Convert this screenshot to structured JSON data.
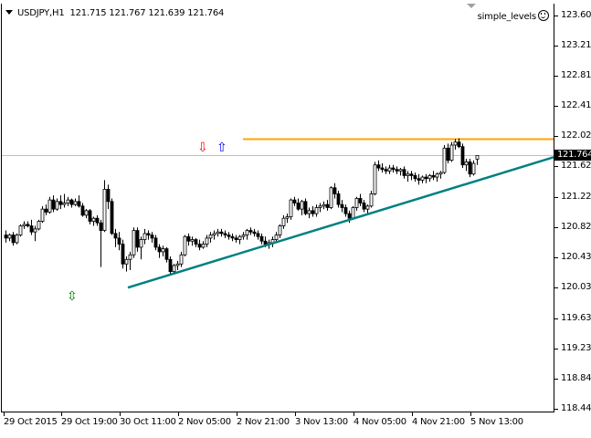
{
  "header": {
    "symbol_timeframe": "USDJPY,H1",
    "ohlc": "121.715 121.767 121.639 121.764"
  },
  "indicator": {
    "name": "simple_levels",
    "icon": "smiley-icon"
  },
  "price_axis": {
    "current_price": "121.764",
    "ticks": [
      "123.600",
      "123.210",
      "122.810",
      "122.410",
      "122.020",
      "121.620",
      "121.220",
      "120.820",
      "120.430",
      "120.030",
      "119.630",
      "119.230",
      "118.840",
      "118.440"
    ]
  },
  "time_axis": {
    "ticks": [
      "29 Oct 2015",
      "29 Oct 19:00",
      "30 Oct 11:00",
      "2 Nov 05:00",
      "2 Nov 21:00",
      "3 Nov 13:00",
      "4 Nov 05:00",
      "4 Nov 21:00",
      "5 Nov 13:00"
    ]
  },
  "colors": {
    "background": "#ffffff",
    "candle": "#000000",
    "resistance_line": "#ffa500",
    "trend_line": "#008080",
    "bid_line": "#c0c0c0",
    "sell_arrow": "#ff0000",
    "buy_arrow": "#0000ff",
    "updown_arrow": "#008000"
  },
  "markers": {
    "sell_arrow": "⇩",
    "buy_arrow": "⇧",
    "updown_arrow": "⇳"
  },
  "chart_data": {
    "type": "candlestick",
    "title": "USDJPY,H1",
    "xlabel": "",
    "ylabel": "",
    "ylim": [
      118.44,
      123.6
    ],
    "grid": false,
    "current_bid": 121.764,
    "last_bar": {
      "open": 121.715,
      "high": 121.767,
      "low": 121.639,
      "close": 121.764
    },
    "x_ticks": [
      "29 Oct 2015",
      "29 Oct 19:00",
      "30 Oct 11:00",
      "2 Nov 05:00",
      "2 Nov 21:00",
      "3 Nov 13:00",
      "4 Nov 05:00",
      "4 Nov 21:00",
      "5 Nov 13:00"
    ],
    "y_ticks": [
      123.6,
      123.21,
      122.81,
      122.41,
      122.02,
      121.62,
      121.22,
      120.82,
      120.43,
      120.03,
      119.63,
      119.23,
      118.84,
      118.44
    ],
    "horizontal_level": {
      "price": 121.98,
      "from_bar_index": 65,
      "color": "orange"
    },
    "trend_line": {
      "start": {
        "bar_index": 34,
        "price": 120.03
      },
      "end": {
        "bar_index": 150,
        "price": 121.74
      },
      "color": "teal"
    },
    "ohlc": [
      [
        120.72,
        120.78,
        120.62,
        120.68
      ],
      [
        120.68,
        120.74,
        120.64,
        120.72
      ],
      [
        120.72,
        120.76,
        120.58,
        120.62
      ],
      [
        120.62,
        120.74,
        120.6,
        120.72
      ],
      [
        120.72,
        120.86,
        120.7,
        120.84
      ],
      [
        120.84,
        120.9,
        120.8,
        120.86
      ],
      [
        120.86,
        120.9,
        120.82,
        120.84
      ],
      [
        120.84,
        120.92,
        120.72,
        120.76
      ],
      [
        120.76,
        120.84,
        120.64,
        120.8
      ],
      [
        120.8,
        120.92,
        120.78,
        120.9
      ],
      [
        120.9,
        121.1,
        120.88,
        121.06
      ],
      [
        121.06,
        121.12,
        120.98,
        121.02
      ],
      [
        121.02,
        121.22,
        121.0,
        121.18
      ],
      [
        121.18,
        121.24,
        121.02,
        121.06
      ],
      [
        121.06,
        121.2,
        121.04,
        121.16
      ],
      [
        121.16,
        121.24,
        121.06,
        121.12
      ],
      [
        121.12,
        121.26,
        121.08,
        121.14
      ],
      [
        121.14,
        121.22,
        121.1,
        121.18
      ],
      [
        121.18,
        121.2,
        121.08,
        121.12
      ],
      [
        121.12,
        121.2,
        121.1,
        121.16
      ],
      [
        121.16,
        121.24,
        121.08,
        121.1
      ],
      [
        121.1,
        121.14,
        120.96,
        120.98
      ],
      [
        120.98,
        121.06,
        120.94,
        121.04
      ],
      [
        121.04,
        121.06,
        120.86,
        120.9
      ],
      [
        120.9,
        120.96,
        120.84,
        120.94
      ],
      [
        120.94,
        120.98,
        120.84,
        120.88
      ],
      [
        120.88,
        120.92,
        120.3,
        120.78
      ],
      [
        120.78,
        121.44,
        120.76,
        121.32
      ],
      [
        121.32,
        121.38,
        121.06,
        121.16
      ],
      [
        121.16,
        121.2,
        120.72,
        120.74
      ],
      [
        120.74,
        120.8,
        120.56,
        120.68
      ],
      [
        120.68,
        120.76,
        120.52,
        120.6
      ],
      [
        120.6,
        120.66,
        120.28,
        120.34
      ],
      [
        120.34,
        120.44,
        120.24,
        120.4
      ],
      [
        120.4,
        120.5,
        120.26,
        120.46
      ],
      [
        120.46,
        120.82,
        120.42,
        120.78
      ],
      [
        120.78,
        120.82,
        120.5,
        120.56
      ],
      [
        120.56,
        120.7,
        120.4,
        120.66
      ],
      [
        120.66,
        120.8,
        120.6,
        120.74
      ],
      [
        120.74,
        120.78,
        120.66,
        120.72
      ],
      [
        120.72,
        120.76,
        120.62,
        120.68
      ],
      [
        120.68,
        120.72,
        120.52,
        120.56
      ],
      [
        120.56,
        120.6,
        120.42,
        120.5
      ],
      [
        120.5,
        120.58,
        120.44,
        120.54
      ],
      [
        120.54,
        120.56,
        120.36,
        120.4
      ],
      [
        120.4,
        120.44,
        120.2,
        120.24
      ],
      [
        120.24,
        120.34,
        120.2,
        120.32
      ],
      [
        120.32,
        120.38,
        120.26,
        120.34
      ],
      [
        120.34,
        120.5,
        120.3,
        120.46
      ],
      [
        120.46,
        120.72,
        120.44,
        120.7
      ],
      [
        120.7,
        120.74,
        120.58,
        120.64
      ],
      [
        120.64,
        120.7,
        120.58,
        120.66
      ],
      [
        120.66,
        120.68,
        120.56,
        120.6
      ],
      [
        120.6,
        120.66,
        120.52,
        120.56
      ],
      [
        120.56,
        120.64,
        120.54,
        120.6
      ],
      [
        120.6,
        120.72,
        120.56,
        120.68
      ],
      [
        120.68,
        120.76,
        120.62,
        120.72
      ],
      [
        120.72,
        120.78,
        120.66,
        120.74
      ],
      [
        120.74,
        120.8,
        120.7,
        120.76
      ],
      [
        120.76,
        120.8,
        120.7,
        120.74
      ],
      [
        120.74,
        120.78,
        120.68,
        120.72
      ],
      [
        120.72,
        120.76,
        120.66,
        120.7
      ],
      [
        120.7,
        120.74,
        120.64,
        120.68
      ],
      [
        120.68,
        120.72,
        120.62,
        120.66
      ],
      [
        120.66,
        120.72,
        120.6,
        120.7
      ],
      [
        120.7,
        120.76,
        120.66,
        120.72
      ],
      [
        120.72,
        120.8,
        120.66,
        120.78
      ],
      [
        120.78,
        120.82,
        120.72,
        120.76
      ],
      [
        120.76,
        120.8,
        120.7,
        120.74
      ],
      [
        120.74,
        120.78,
        120.66,
        120.7
      ],
      [
        120.7,
        120.74,
        120.6,
        120.64
      ],
      [
        120.64,
        120.7,
        120.56,
        120.6
      ],
      [
        120.6,
        120.66,
        120.54,
        120.62
      ],
      [
        120.62,
        120.7,
        120.56,
        120.66
      ],
      [
        120.66,
        120.76,
        120.62,
        120.72
      ],
      [
        120.72,
        120.86,
        120.68,
        120.84
      ],
      [
        120.84,
        120.98,
        120.8,
        120.94
      ],
      [
        120.94,
        121.0,
        120.88,
        120.96
      ],
      [
        120.96,
        121.2,
        120.92,
        121.18
      ],
      [
        121.18,
        121.22,
        121.1,
        121.14
      ],
      [
        121.14,
        121.2,
        121.04,
        121.06
      ],
      [
        121.06,
        121.18,
        120.98,
        121.16
      ],
      [
        121.16,
        121.2,
        120.98,
        121.0
      ],
      [
        121.0,
        121.08,
        120.94,
        121.04
      ],
      [
        121.04,
        121.1,
        120.96,
        121.0
      ],
      [
        121.0,
        121.12,
        120.96,
        121.08
      ],
      [
        121.08,
        121.14,
        121.02,
        121.1
      ],
      [
        121.1,
        121.16,
        121.06,
        121.12
      ],
      [
        121.12,
        121.18,
        121.04,
        121.08
      ],
      [
        121.08,
        121.36,
        121.06,
        121.34
      ],
      [
        121.34,
        121.4,
        121.2,
        121.26
      ],
      [
        121.26,
        121.3,
        121.08,
        121.12
      ],
      [
        121.12,
        121.18,
        121.02,
        121.08
      ],
      [
        121.08,
        121.12,
        120.96,
        121.0
      ],
      [
        121.0,
        121.04,
        120.88,
        120.94
      ],
      [
        120.94,
        121.1,
        120.92,
        121.08
      ],
      [
        121.08,
        121.22,
        121.04,
        121.2
      ],
      [
        121.2,
        121.26,
        121.1,
        121.14
      ],
      [
        121.14,
        121.18,
        121.02,
        121.06
      ],
      [
        121.06,
        121.12,
        121.0,
        121.1
      ],
      [
        121.1,
        121.3,
        121.08,
        121.26
      ],
      [
        121.26,
        121.68,
        121.24,
        121.64
      ],
      [
        121.64,
        121.7,
        121.56,
        121.6
      ],
      [
        121.6,
        121.66,
        121.54,
        121.58
      ],
      [
        121.58,
        121.62,
        121.52,
        121.56
      ],
      [
        121.56,
        121.64,
        121.52,
        121.6
      ],
      [
        121.6,
        121.64,
        121.54,
        121.58
      ],
      [
        121.58,
        121.62,
        121.52,
        121.56
      ],
      [
        121.56,
        121.6,
        121.5,
        121.58
      ],
      [
        121.58,
        121.62,
        121.46,
        121.5
      ],
      [
        121.5,
        121.56,
        121.42,
        121.52
      ],
      [
        121.52,
        121.56,
        121.44,
        121.5
      ],
      [
        121.5,
        121.54,
        121.42,
        121.46
      ],
      [
        121.46,
        121.52,
        121.38,
        121.44
      ],
      [
        121.44,
        121.5,
        121.4,
        121.48
      ],
      [
        121.48,
        121.52,
        121.4,
        121.46
      ],
      [
        121.46,
        121.52,
        121.42,
        121.5
      ],
      [
        121.5,
        121.56,
        121.44,
        121.48
      ],
      [
        121.48,
        121.54,
        121.42,
        121.52
      ],
      [
        121.52,
        121.56,
        121.46,
        121.54
      ],
      [
        121.54,
        121.9,
        121.52,
        121.86
      ],
      [
        121.86,
        121.92,
        121.66,
        121.7
      ],
      [
        121.7,
        121.94,
        121.68,
        121.9
      ],
      [
        121.9,
        121.98,
        121.84,
        121.94
      ],
      [
        121.94,
        121.99,
        121.86,
        121.88
      ],
      [
        121.88,
        121.92,
        121.6,
        121.64
      ],
      [
        121.64,
        121.72,
        121.56,
        121.68
      ],
      [
        121.68,
        121.72,
        121.48,
        121.52
      ],
      [
        121.52,
        121.7,
        121.5,
        121.66
      ],
      [
        121.715,
        121.767,
        121.639,
        121.764
      ]
    ]
  }
}
